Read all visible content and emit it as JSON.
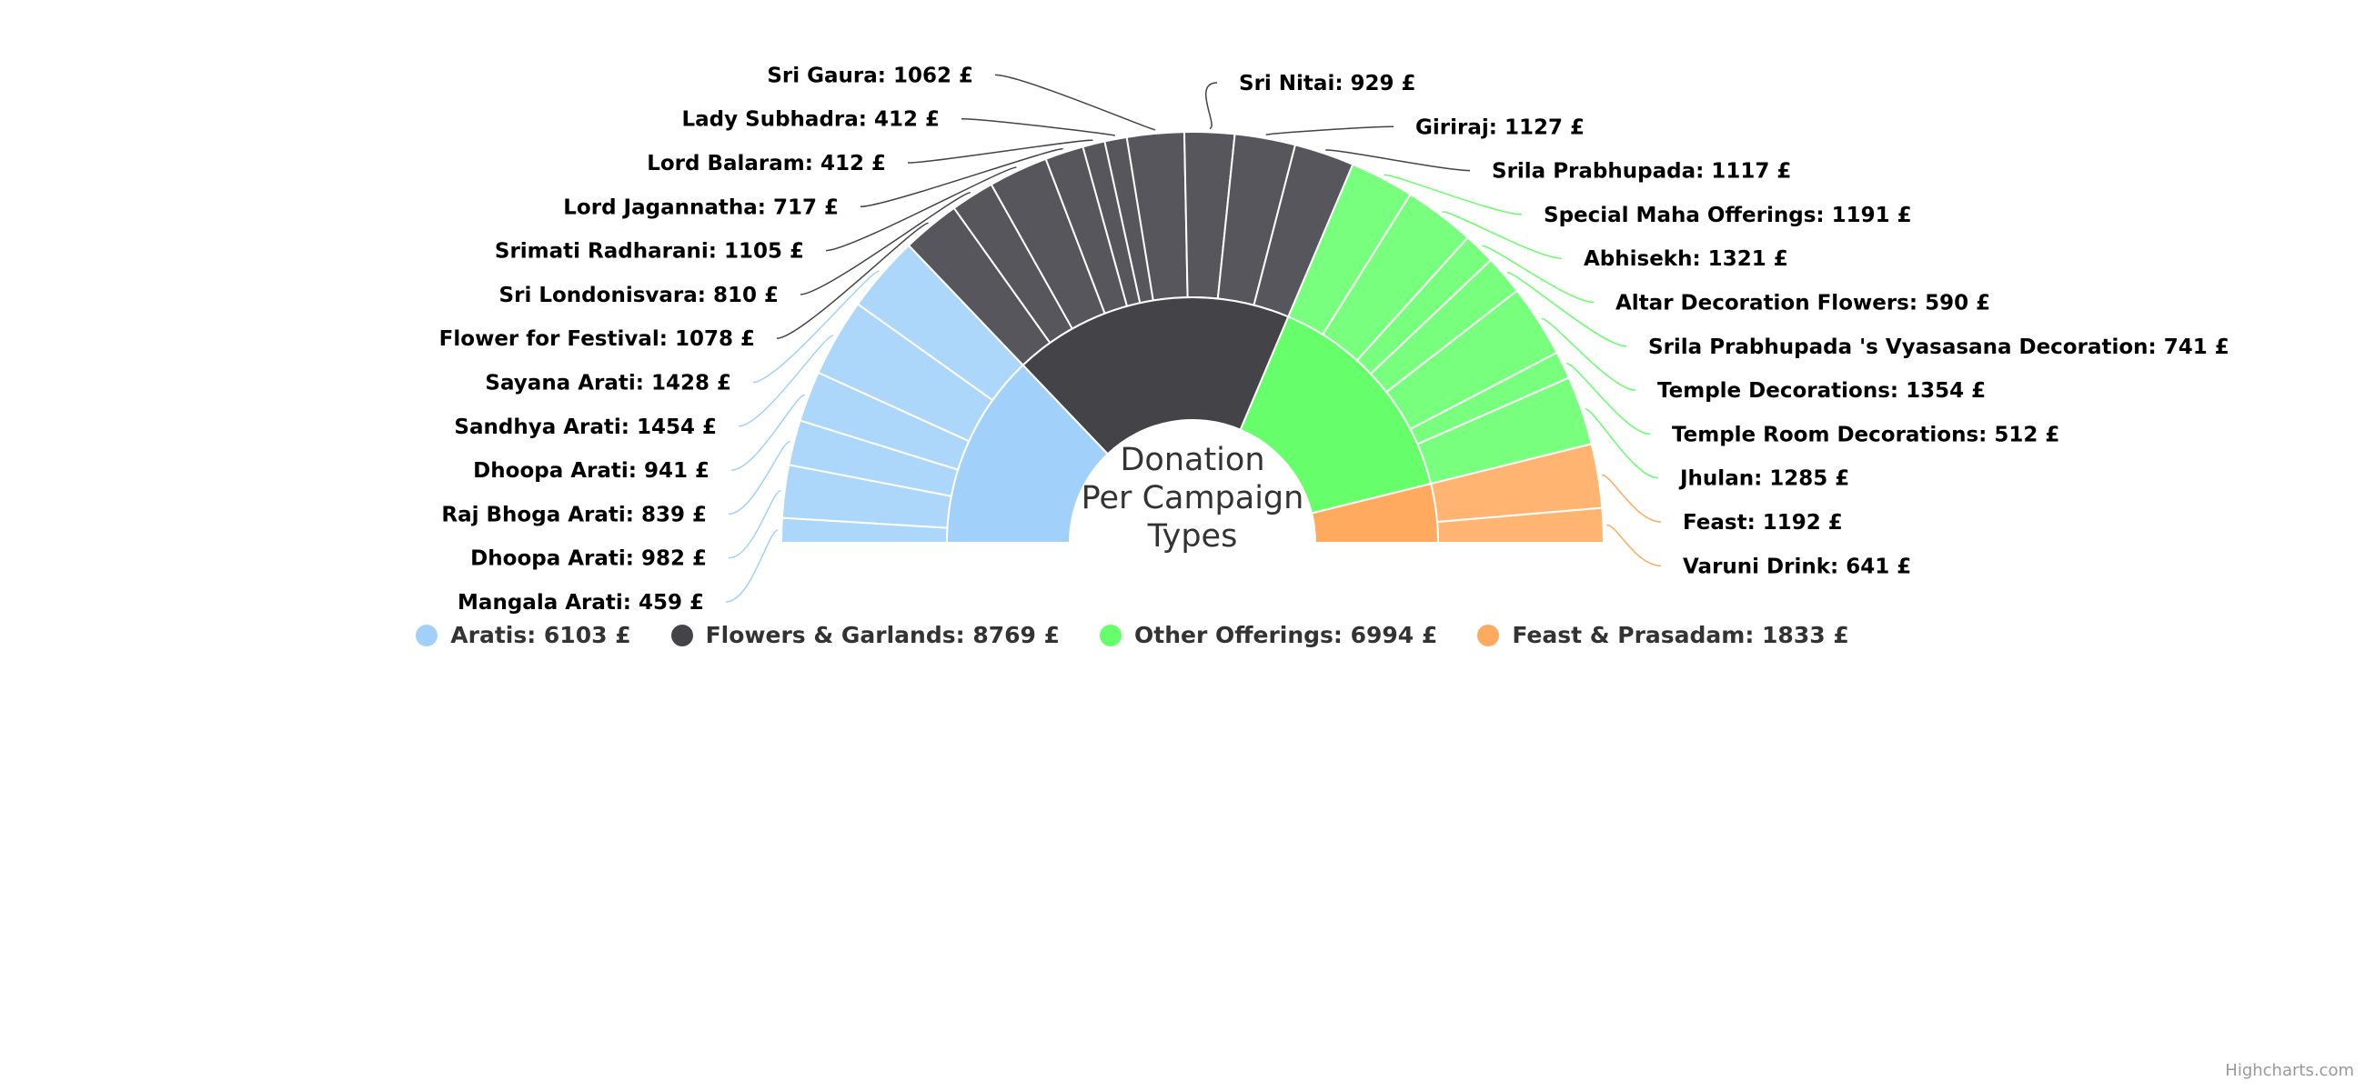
{
  "chart_data": {
    "type": "pie",
    "subtype": "semi-circle donut with drilldown ring",
    "title": "Donation Per Campaign Types",
    "title_lines": [
      "Donation",
      "Per Campaign",
      "Types"
    ],
    "currency": "£",
    "series": [
      {
        "name": "Aratis",
        "total": 6103,
        "color": "#a1d1fb",
        "items": [
          {
            "name": "Mangala Arati",
            "value": 459
          },
          {
            "name": "Dhoopa Arati",
            "value": 982
          },
          {
            "name": "Raj Bhoga Arati",
            "value": 839
          },
          {
            "name": "Dhoopa Arati",
            "value": 941
          },
          {
            "name": "Sandhya Arati",
            "value": 1454
          },
          {
            "name": "Sayana Arati",
            "value": 1428
          }
        ]
      },
      {
        "name": "Flowers & Garlands",
        "total": 8769,
        "color": "#434348",
        "items": [
          {
            "name": "Flower for Festival",
            "value": 1078
          },
          {
            "name": "Sri Londonisvara",
            "value": 810
          },
          {
            "name": "Srimati Radharani",
            "value": 1105
          },
          {
            "name": "Lord Jagannatha",
            "value": 717
          },
          {
            "name": "Lord Balaram",
            "value": 412
          },
          {
            "name": "Lady Subhadra",
            "value": 412
          },
          {
            "name": "Sri Gaura",
            "value": 1062
          },
          {
            "name": "Sri Nitai",
            "value": 929
          },
          {
            "name": "Giriraj",
            "value": 1127
          },
          {
            "name": "Srila Prabhupada",
            "value": 1117
          }
        ]
      },
      {
        "name": "Other Offerings",
        "total": 6994,
        "color": "#66ff6b",
        "items": [
          {
            "name": "Special Maha Offerings",
            "value": 1191
          },
          {
            "name": "Abhisekh",
            "value": 1321
          },
          {
            "name": "Altar Decoration Flowers",
            "value": 590
          },
          {
            "name": "Srila Prabhupada 's Vyasasana Decoration",
            "value": 741
          },
          {
            "name": "Temple Decorations",
            "value": 1354
          },
          {
            "name": "Temple Room Decorations",
            "value": 512
          },
          {
            "name": "Jhulan",
            "value": 1285
          }
        ]
      },
      {
        "name": "Feast & Prasadam",
        "total": 1833,
        "color": "#ffaa5e",
        "items": [
          {
            "name": "Feast",
            "value": 1192
          },
          {
            "name": "Varuni Drink",
            "value": 641
          }
        ]
      }
    ],
    "legend_placement": "bottom-center"
  },
  "credits": "Highcharts.com"
}
